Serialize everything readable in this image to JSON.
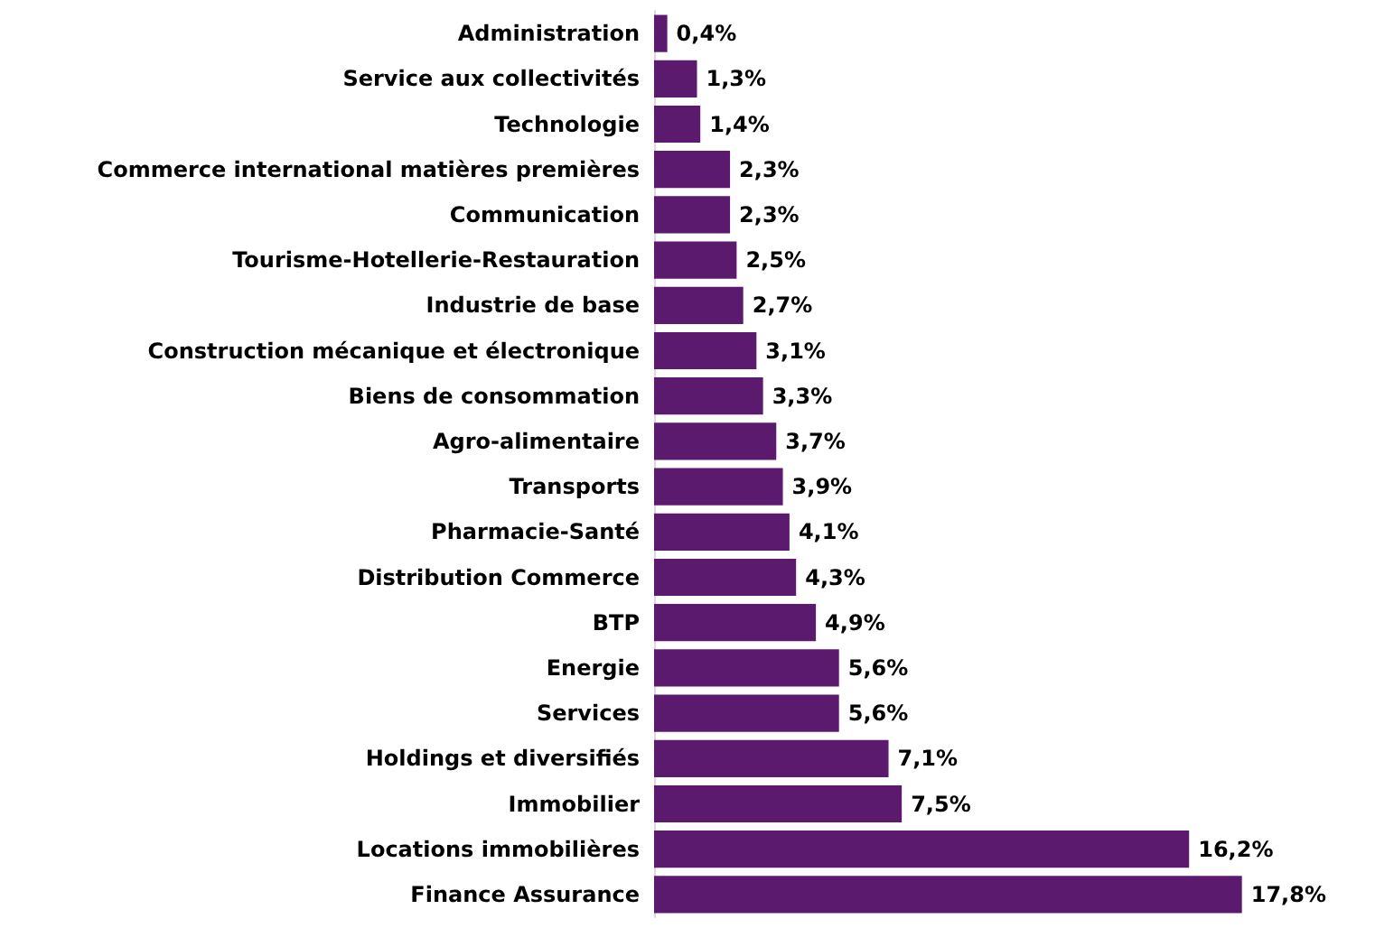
{
  "chart_data": {
    "type": "bar",
    "orientation": "horizontal",
    "categories": [
      "Administration",
      "Service aux collectivités",
      "Technologie",
      "Commerce international matières premières",
      "Communication",
      "Tourisme-Hotellerie-Restauration",
      "Industrie de base",
      "Construction mécanique et électronique",
      "Biens de consommation",
      "Agro-alimentaire",
      "Transports",
      "Pharmacie-Santé",
      "Distribution Commerce",
      "BTP",
      "Energie",
      "Services",
      "Holdings et diversifiés",
      "Immobilier",
      "Locations immobilières",
      "Finance Assurance"
    ],
    "values": [
      0.4,
      1.3,
      1.4,
      2.3,
      2.3,
      2.5,
      2.7,
      3.1,
      3.3,
      3.7,
      3.9,
      4.1,
      4.3,
      4.9,
      5.6,
      5.6,
      7.1,
      7.5,
      16.2,
      17.8
    ],
    "value_labels": [
      "0,4%",
      "1,3%",
      "1,4%",
      "2,3%",
      "2,3%",
      "2,5%",
      "2,7%",
      "3,1%",
      "3,3%",
      "3,7%",
      "3,9%",
      "4,1%",
      "4,3%",
      "4,9%",
      "5,6%",
      "5,6%",
      "7,1%",
      "7,5%",
      "16,2%",
      "17,8%"
    ],
    "color": "#5b1a6e",
    "grid": false
  }
}
